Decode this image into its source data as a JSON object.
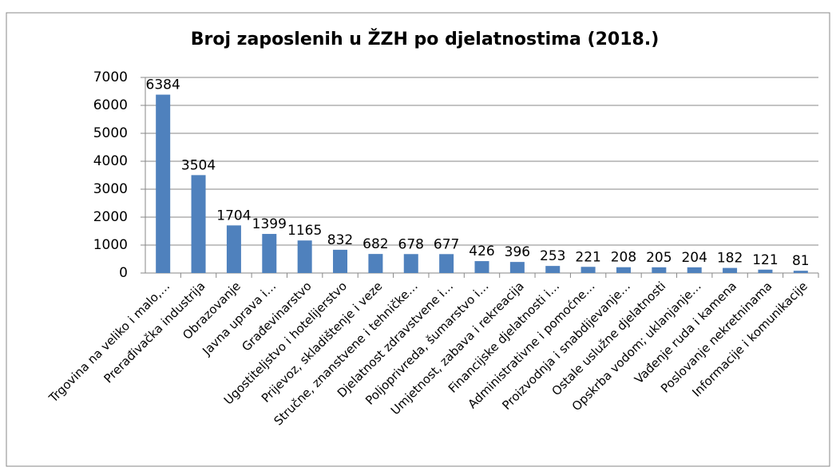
{
  "chart_data": {
    "type": "bar",
    "title": "Broj zaposlenih u ŽZH po djelatnostima  (2018.)",
    "categories": [
      "Trgovina na veliko i malo,…",
      "Prerađivačka industrija",
      "Obrazovanje",
      "Javna uprava i…",
      "Građevinarstvo",
      "Ugostiteljstvo i hotelijerstvo",
      "Prijevoz, skladištenje i veze",
      "Stručne, znanstvene i tehničke…",
      "Djelatnost zdravstvene i…",
      "Poljoprivreda, šumarstvo i…",
      "Umjetnost, zabava i rekreacija",
      "Financijske djelatnosti i…",
      "Administrativne i pomoćne…",
      "Proizvodnja i snabdijevanje…",
      "Ostale uslužne djelatnosti",
      "Opskrba vodom; uklanjanje…",
      "Vađenje ruda i kamena",
      "Poslovanje nekretninama",
      "Informacije i komunikacije"
    ],
    "values": [
      6384,
      3504,
      1704,
      1399,
      1165,
      832,
      682,
      678,
      677,
      426,
      396,
      253,
      221,
      208,
      205,
      204,
      182,
      121,
      81
    ],
    "color": "#4f81bd",
    "ylim": [
      0,
      7000
    ],
    "yticks": [
      0,
      1000,
      2000,
      3000,
      4000,
      5000,
      6000,
      7000
    ],
    "grid": true
  }
}
